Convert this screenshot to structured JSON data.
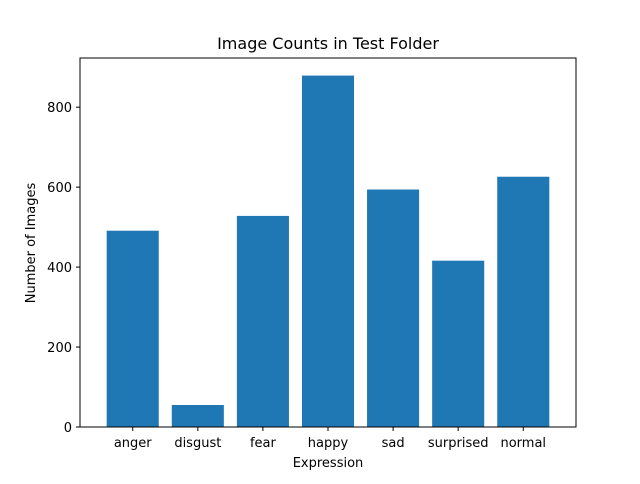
{
  "chart_data": {
    "type": "bar",
    "title": "Image Counts in Test Folder",
    "xlabel": "Expression",
    "ylabel": "Number of Images",
    "categories": [
      "anger",
      "disgust",
      "fear",
      "happy",
      "sad",
      "surprised",
      "normal"
    ],
    "values": [
      491,
      55,
      528,
      879,
      594,
      416,
      626
    ],
    "ylim": [
      0,
      923
    ],
    "yticks": [
      0,
      200,
      400,
      600,
      800
    ],
    "grid": false,
    "legend": "none",
    "bar_color": "#1f77b4"
  }
}
